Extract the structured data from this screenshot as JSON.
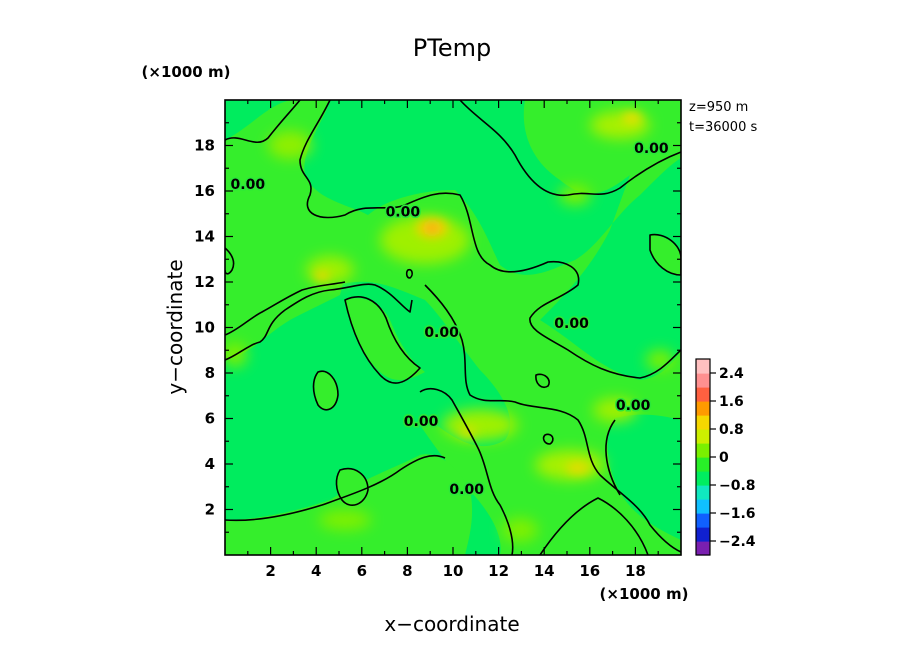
{
  "chart_data": {
    "type": "heatmap",
    "title": "PTemp",
    "xlabel": "x−coordinate",
    "ylabel": "y−coordinate",
    "x_unit": "(×1000 m)",
    "y_unit": "(×1000 m)",
    "info_z": "z=950 m",
    "info_t": "t=36000 s",
    "xlim": [
      0,
      20
    ],
    "ylim": [
      0,
      20
    ],
    "xticks": [
      2,
      4,
      6,
      8,
      10,
      12,
      14,
      16,
      18
    ],
    "yticks": [
      2,
      4,
      6,
      8,
      10,
      12,
      14,
      16,
      18
    ],
    "contour_level": 0.0,
    "contour_labels": [
      {
        "text": "0.00",
        "x": 1.0,
        "y": 16.3
      },
      {
        "text": "0.00",
        "x": 7.8,
        "y": 15.1
      },
      {
        "text": "0.00",
        "x": 18.7,
        "y": 17.9
      },
      {
        "text": "0.00",
        "x": 15.2,
        "y": 10.2
      },
      {
        "text": "0.00",
        "x": 17.9,
        "y": 6.6
      },
      {
        "text": "0.00",
        "x": 9.5,
        "y": 9.8
      },
      {
        "text": "0.00",
        "x": 8.6,
        "y": 5.9
      },
      {
        "text": "0.00",
        "x": 10.6,
        "y": 2.9
      }
    ],
    "colorbar": {
      "range": [
        -2.8,
        2.8
      ],
      "tick_labels": [
        "2.4",
        "1.6",
        "0.8",
        "0",
        "−0.8",
        "−1.6",
        "−2.4"
      ],
      "tick_values": [
        2.4,
        1.6,
        0.8,
        0,
        -0.8,
        -1.6,
        -2.4
      ],
      "colors": [
        "#7a1fb0",
        "#1020d0",
        "#1060ff",
        "#10c0ff",
        "#10e8c0",
        "#00ee60",
        "#28ef28",
        "#7af000",
        "#ccef00",
        "#f6d800",
        "#ff9a00",
        "#ff6040",
        "#ff9090",
        "#ffc0c0"
      ]
    },
    "grid": false
  }
}
